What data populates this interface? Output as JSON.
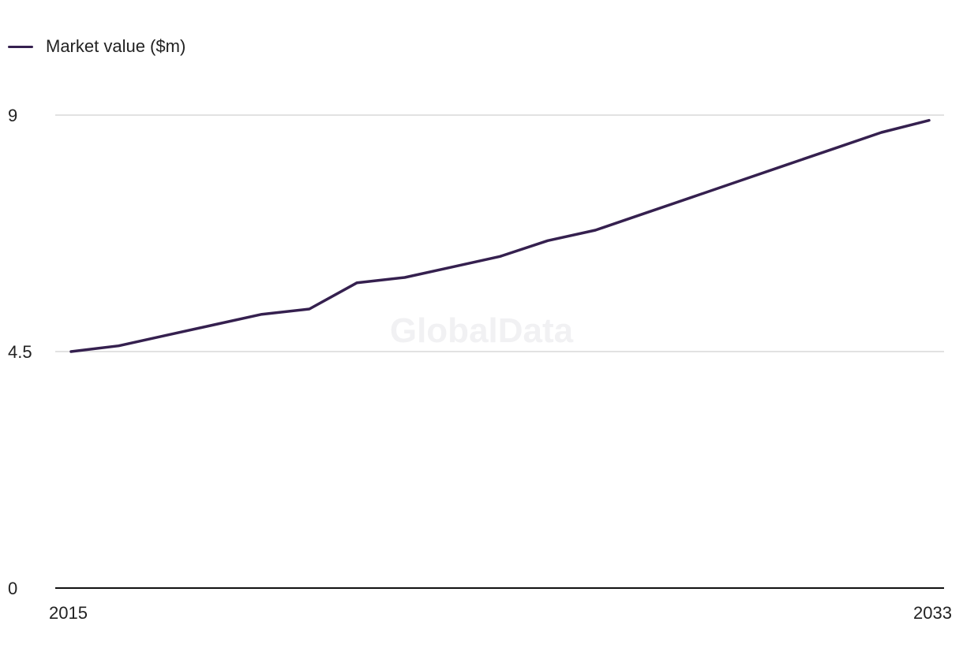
{
  "chart_data": {
    "type": "line",
    "x": [
      2015,
      2016,
      2017,
      2018,
      2019,
      2020,
      2021,
      2022,
      2023,
      2024,
      2025,
      2026,
      2027,
      2028,
      2029,
      2030,
      2031,
      2032,
      2033
    ],
    "series": [
      {
        "name": "Market value ($m)",
        "values": [
          4.5,
          4.61,
          4.81,
          5.01,
          5.21,
          5.31,
          5.81,
          5.91,
          6.11,
          6.31,
          6.61,
          6.81,
          7.12,
          7.43,
          7.74,
          8.05,
          8.36,
          8.67,
          8.9
        ]
      }
    ],
    "xlim": [
      2015,
      2033
    ],
    "ylim": [
      0,
      9
    ],
    "y_ticks": [
      "0",
      "4.5",
      "9"
    ],
    "x_ticks": [
      "2015",
      "2033"
    ],
    "grid": true,
    "legend_position": "top-left",
    "colors": {
      "series": "#35204f",
      "grid": "#d9d9d9",
      "axis": "#111111"
    }
  },
  "watermark": "GlobalData"
}
